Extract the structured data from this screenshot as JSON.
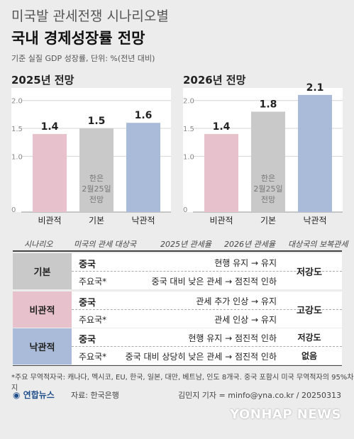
{
  "title_line1": "미국발 관세전쟁 시나리오별",
  "title_line2": "국내 경제성장률 전망",
  "subtitle": "기준 실질 GDP 성장률, 단위: %(전년 대비)",
  "chart_data": [
    {
      "type": "bar",
      "title": "2025년 전망",
      "categories": [
        "비관적",
        "기본",
        "낙관적"
      ],
      "values": [
        1.4,
        1.5,
        1.6
      ],
      "colors": [
        "#e7c1cb",
        "#c9c9c9",
        "#a9bbd8"
      ],
      "yticks": [
        0,
        1.0,
        1.5,
        2.0
      ],
      "ylim": [
        0,
        2.2
      ],
      "annotation": [
        "한은",
        "2월25일",
        "전망"
      ],
      "annotation_bar": 1
    },
    {
      "type": "bar",
      "title": "2026년 전망",
      "categories": [
        "비관적",
        "기본",
        "낙관적"
      ],
      "values": [
        1.4,
        1.8,
        2.1
      ],
      "colors": [
        "#e7c1cb",
        "#c9c9c9",
        "#a9bbd8"
      ],
      "yticks": [
        0,
        1.0,
        1.5,
        2.0
      ],
      "ylim": [
        0,
        2.2
      ],
      "annotation": [
        "한은",
        "2월25일",
        "전망"
      ],
      "annotation_bar": 1
    }
  ],
  "table": {
    "headers": [
      "시나리오",
      "미국의 관세 대상국",
      "2025년 관세율",
      "2026년 관세율",
      "대상국의 보복관세"
    ],
    "rows": [
      {
        "scenario": "기본",
        "color": "#c9c9c9",
        "retaliation": "저강도",
        "china": "중국",
        "china_desc": "현행 유지 → 유지",
        "major": "주요국*",
        "major_desc": "중국 대비 낮은 관세 → 점진적 인하"
      },
      {
        "scenario": "비관적",
        "color": "#e7c1cb",
        "retaliation": "고강도",
        "china": "중국",
        "china_desc": "관세 추가 인상 → 유지",
        "major": "주요국*",
        "major_desc": "관세 인상 → 유지"
      },
      {
        "scenario": "낙관적",
        "color": "#a9bbd8",
        "retaliation_china": "저강도",
        "retaliation_major": "없음",
        "china": "중국",
        "china_desc": "현행 유지 → 점진적 인하",
        "major": "주요국*",
        "major_desc": "중국 대비 상당히 낮은 관세 → 점진적 인하"
      }
    ]
  },
  "note": "*주요 무역적자국: 캐나다, 멕시코, EU, 한국, 일본, 대만, 베트남, 인도 8개국. 중국 포함시 미국 무역적자의 95%차지",
  "logo": "연합뉴스",
  "source": "자료: 한국은행",
  "credit": "김민지 기자 = minfo@yna.co.kr / 20250313",
  "watermark": "YONHAP NEWS"
}
